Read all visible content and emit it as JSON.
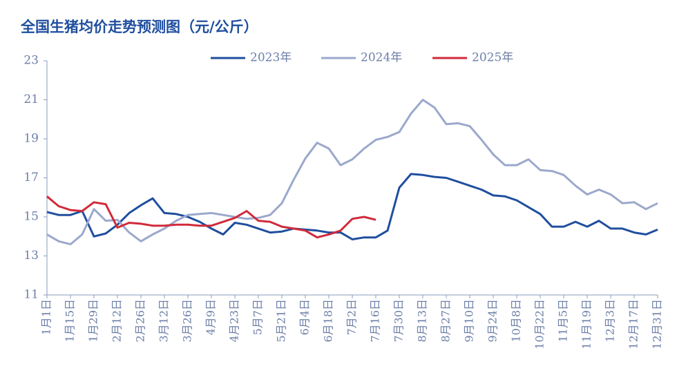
{
  "chart_data": {
    "type": "line",
    "title": "全国生猪均价走势预测图（元/公斤）",
    "categories": [
      "1月1日",
      null,
      "1月15日",
      null,
      "1月29日",
      null,
      "2月12日",
      null,
      "2月26日",
      null,
      "3月12日",
      null,
      "3月26日",
      null,
      "4月9日",
      null,
      "4月23日",
      null,
      "5月7日",
      null,
      "5月21日",
      null,
      "6月4日",
      null,
      "6月18日",
      null,
      "7月2日",
      null,
      "7月16日",
      null,
      "7月30日",
      null,
      "8月13日",
      null,
      "8月27日",
      null,
      "9月10日",
      null,
      "9月24日",
      null,
      "10月8日",
      null,
      "10月22日",
      null,
      "11月5日",
      null,
      "11月19日",
      null,
      "12月3日",
      null,
      "12月17日",
      null,
      "12月31日"
    ],
    "series": [
      {
        "name": "2023年",
        "color": "#1f4e9e",
        "values": [
          15.25,
          15.1,
          15.1,
          15.3,
          14.0,
          14.15,
          14.6,
          15.2,
          15.6,
          15.95,
          15.2,
          15.15,
          15.0,
          14.75,
          14.4,
          14.1,
          14.7,
          14.6,
          14.4,
          14.2,
          14.25,
          14.4,
          14.35,
          14.3,
          14.2,
          14.2,
          13.85,
          13.95,
          13.95,
          14.3,
          16.5,
          17.2,
          17.15,
          17.05,
          17.0,
          16.8,
          16.6,
          16.4,
          16.1,
          16.05,
          15.85,
          15.5,
          15.15,
          14.5,
          14.5,
          14.75,
          14.5,
          14.8,
          14.4,
          14.4,
          14.2,
          14.1,
          14.35
        ]
      },
      {
        "name": "2024年",
        "color": "#9ba8cc",
        "values": [
          14.1,
          13.75,
          13.6,
          14.1,
          15.4,
          14.8,
          14.85,
          14.2,
          13.75,
          14.1,
          14.4,
          14.8,
          15.1,
          15.15,
          15.2,
          15.1,
          15.0,
          14.9,
          14.95,
          15.1,
          15.7,
          16.9,
          18.0,
          18.8,
          18.5,
          17.65,
          17.95,
          18.5,
          18.95,
          19.1,
          19.35,
          20.3,
          21.0,
          20.6,
          19.75,
          19.8,
          19.65,
          18.95,
          18.2,
          17.65,
          17.65,
          17.95,
          17.4,
          17.35,
          17.15,
          16.6,
          16.15,
          16.4,
          16.15,
          15.7,
          15.75,
          15.4,
          15.7
        ]
      },
      {
        "name": "2025年",
        "color": "#d02a3a",
        "values": [
          16.05,
          15.55,
          15.35,
          15.3,
          15.75,
          15.65,
          14.45,
          14.7,
          14.65,
          14.55,
          14.55,
          14.6,
          14.6,
          14.55,
          14.55,
          14.75,
          14.95,
          15.3,
          14.8,
          14.75,
          14.5,
          14.4,
          14.3,
          13.95,
          14.1,
          14.3,
          14.9,
          15.0,
          14.85,
          null,
          null,
          null,
          null,
          null,
          null,
          null,
          null,
          null,
          null,
          null,
          null,
          null,
          null,
          null,
          null,
          null,
          null,
          null,
          null,
          null,
          null,
          null,
          null
        ]
      }
    ],
    "ylim": [
      11,
      23
    ],
    "yticks": [
      11,
      13,
      15,
      17,
      19,
      21,
      23
    ],
    "legend": "top",
    "grid": false
  }
}
